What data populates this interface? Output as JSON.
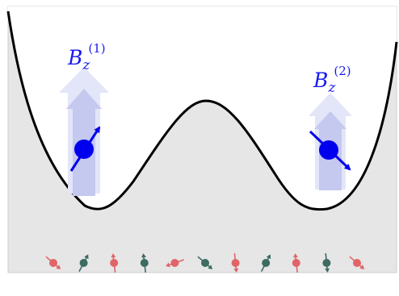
{
  "labels": {
    "left_field": {
      "base": "B",
      "sub": "z",
      "sup": "(1)"
    },
    "right_field": {
      "base": "B",
      "sub": "z",
      "sup": "(2)"
    }
  },
  "colors": {
    "background_box": "#e6e6e6",
    "box_border": "#cfcfcf",
    "potential_curve": "#000000",
    "qubit": "#0000ee",
    "label": "#1a1aee",
    "field_arrow_light": "#e3e5f8",
    "field_arrow_dark": "#c5c8ef",
    "bath_spin_red": "#e06468",
    "bath_spin_teal": "#3d6b62"
  },
  "bath_spins": [
    {
      "color": "red",
      "direction": "down-right"
    },
    {
      "color": "teal",
      "direction": "up-right"
    },
    {
      "color": "red",
      "direction": "up"
    },
    {
      "color": "teal",
      "direction": "up"
    },
    {
      "color": "red",
      "direction": "left"
    },
    {
      "color": "teal",
      "direction": "down-right"
    },
    {
      "color": "red",
      "direction": "down"
    },
    {
      "color": "teal",
      "direction": "up-right"
    },
    {
      "color": "red",
      "direction": "up"
    },
    {
      "color": "teal",
      "direction": "down"
    },
    {
      "color": "red",
      "direction": "down-right"
    }
  ]
}
